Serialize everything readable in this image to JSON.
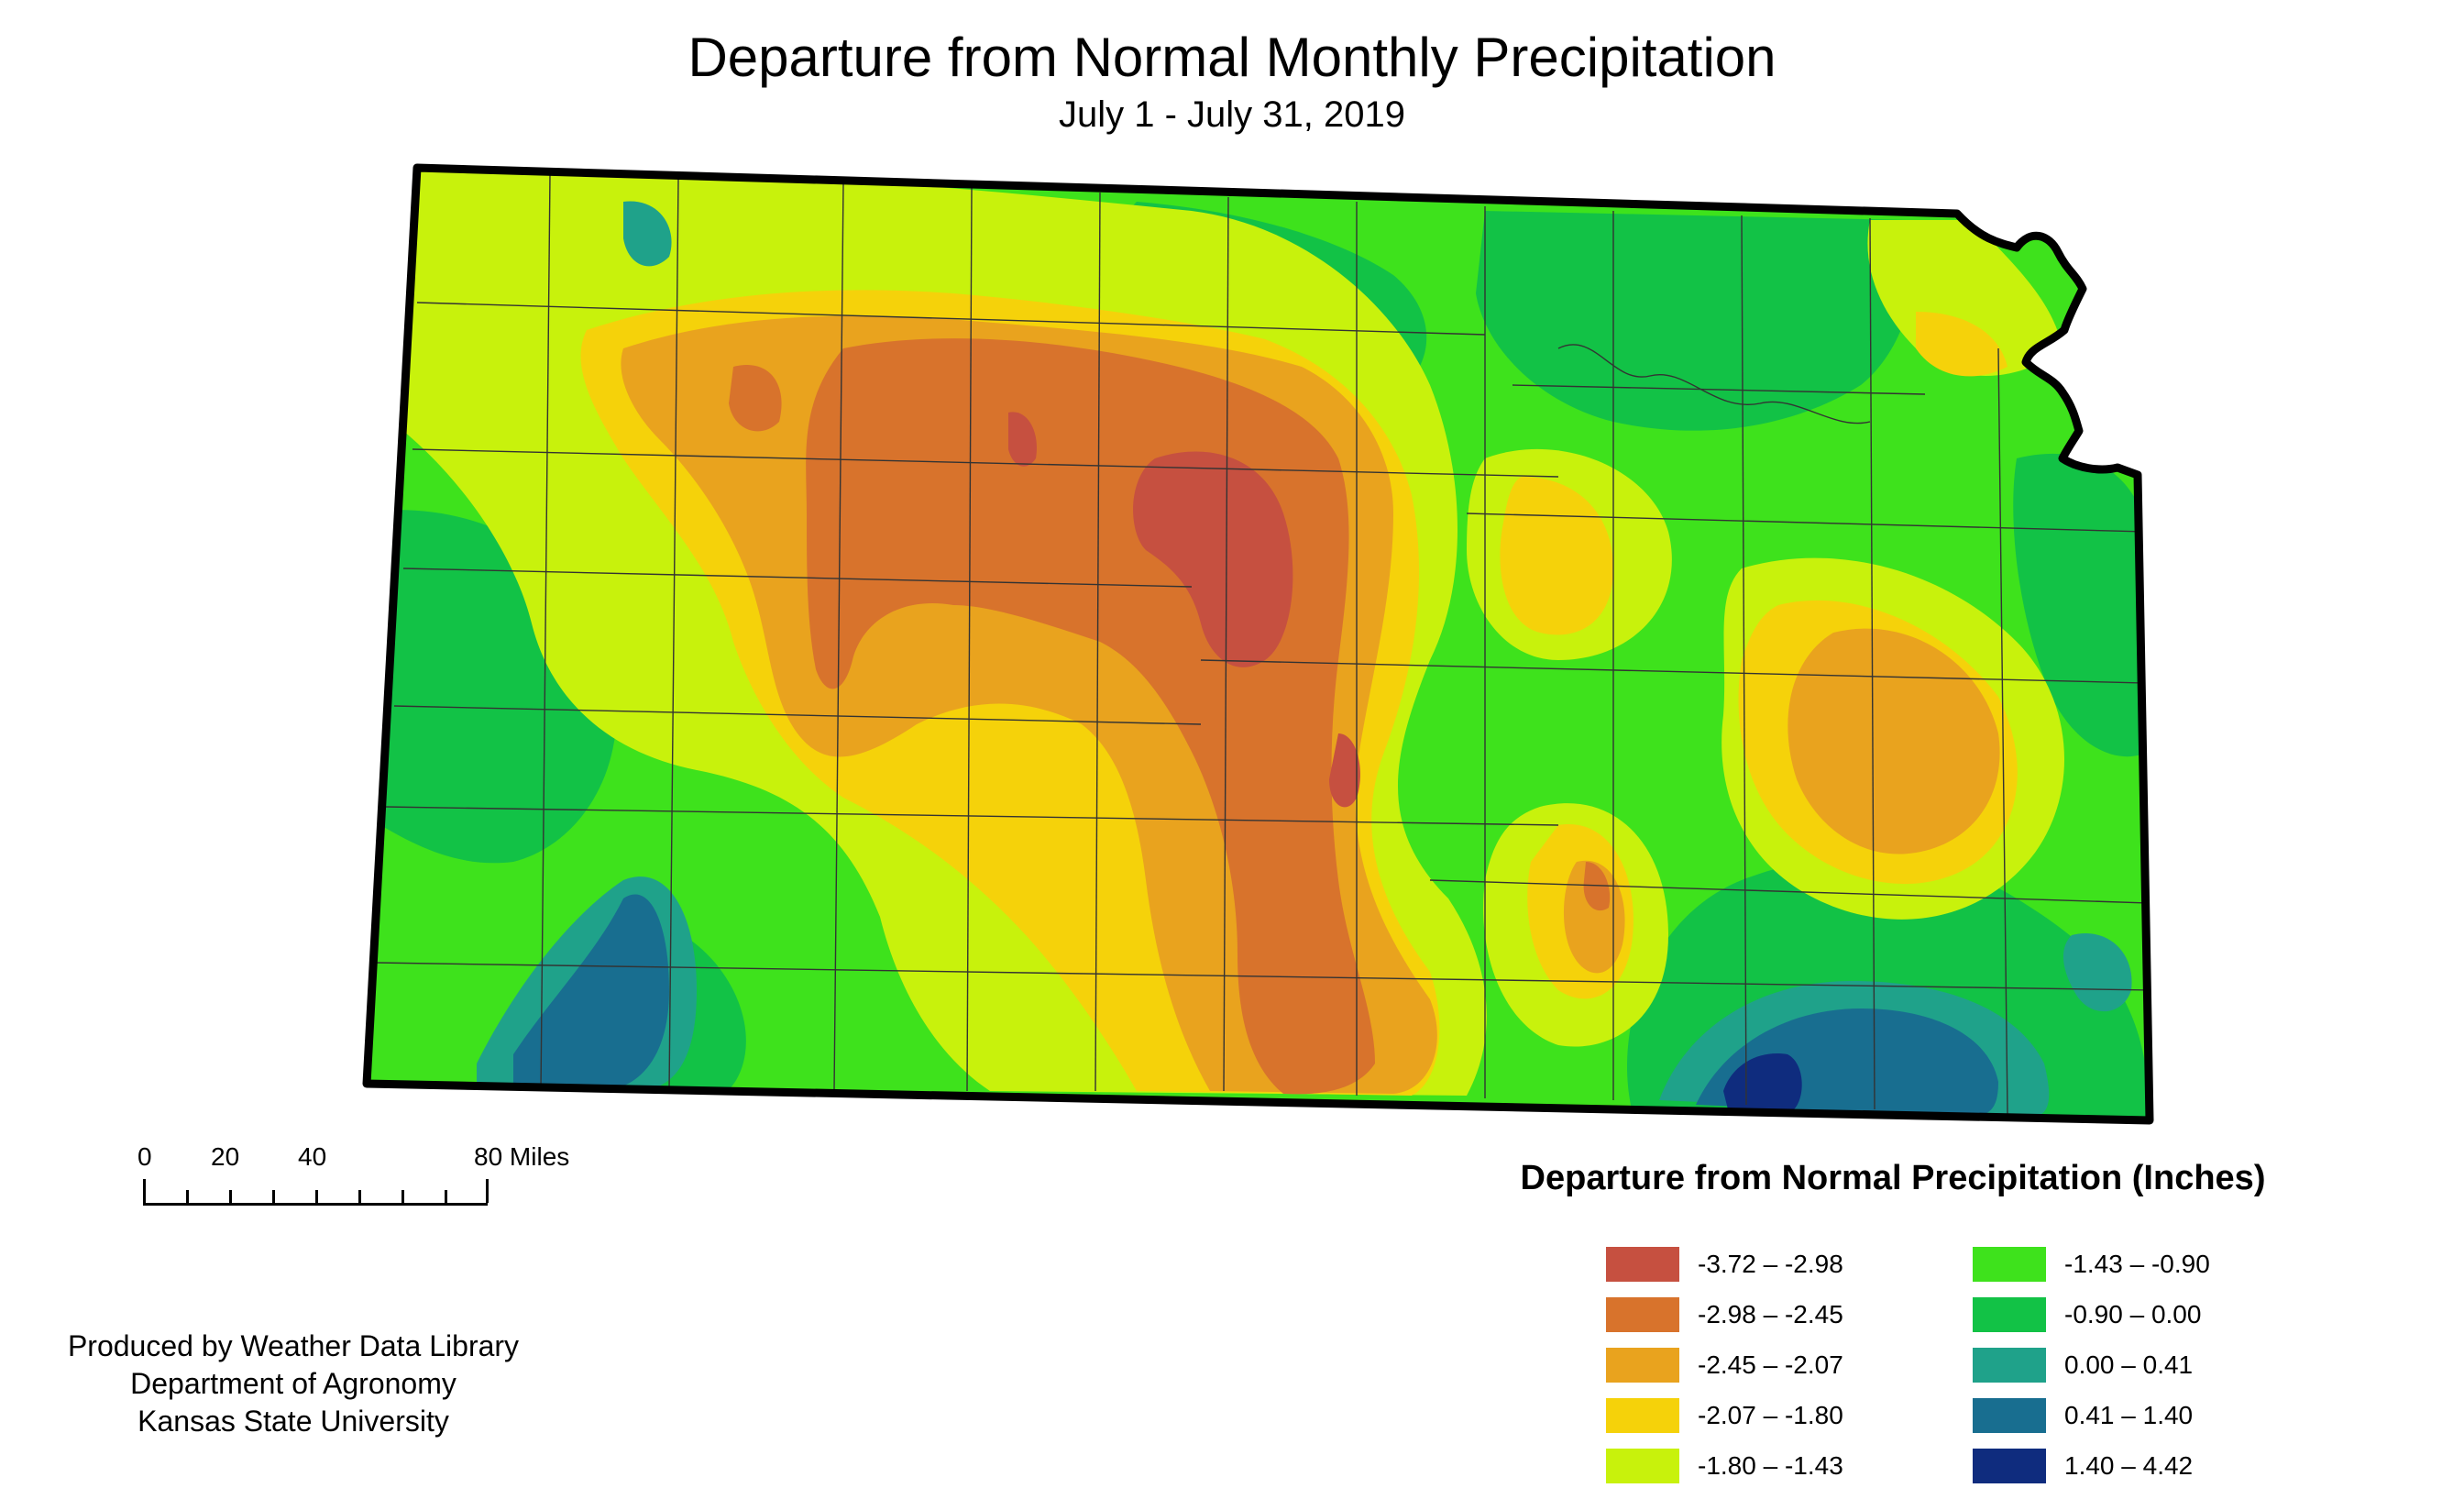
{
  "header": {
    "title": "Departure from Normal Monthly Precipitation",
    "subtitle": "July 1 - July 31, 2019"
  },
  "scale_bar": {
    "labels": [
      "0",
      "20",
      "40",
      "80 Miles"
    ]
  },
  "credits": {
    "line1": "Produced by Weather Data Library",
    "line2": "Department of Agronomy",
    "line3": "Kansas State University"
  },
  "legend": {
    "title": "Departure from Normal Precipitation (Inches)",
    "classes": [
      {
        "label": "-3.72 – -2.98",
        "color": "#c65040"
      },
      {
        "label": "-2.98 – -2.45",
        "color": "#d8732c"
      },
      {
        "label": "-2.45 – -2.07",
        "color": "#e9a31e"
      },
      {
        "label": "-2.07 – -1.80",
        "color": "#f5d20a"
      },
      {
        "label": "-1.80 – -1.43",
        "color": "#c8f20c"
      },
      {
        "label": "-1.43 – -0.90",
        "color": "#3ee21c"
      },
      {
        "label": "-0.90 – 0.00",
        "color": "#12c246"
      },
      {
        "label": "0.00 – 0.41",
        "color": "#1fa28a"
      },
      {
        "label": "0.41 – 1.40",
        "color": "#186e90"
      },
      {
        "label": "1.40 – 4.42",
        "color": "#0f2c7e"
      }
    ]
  }
}
